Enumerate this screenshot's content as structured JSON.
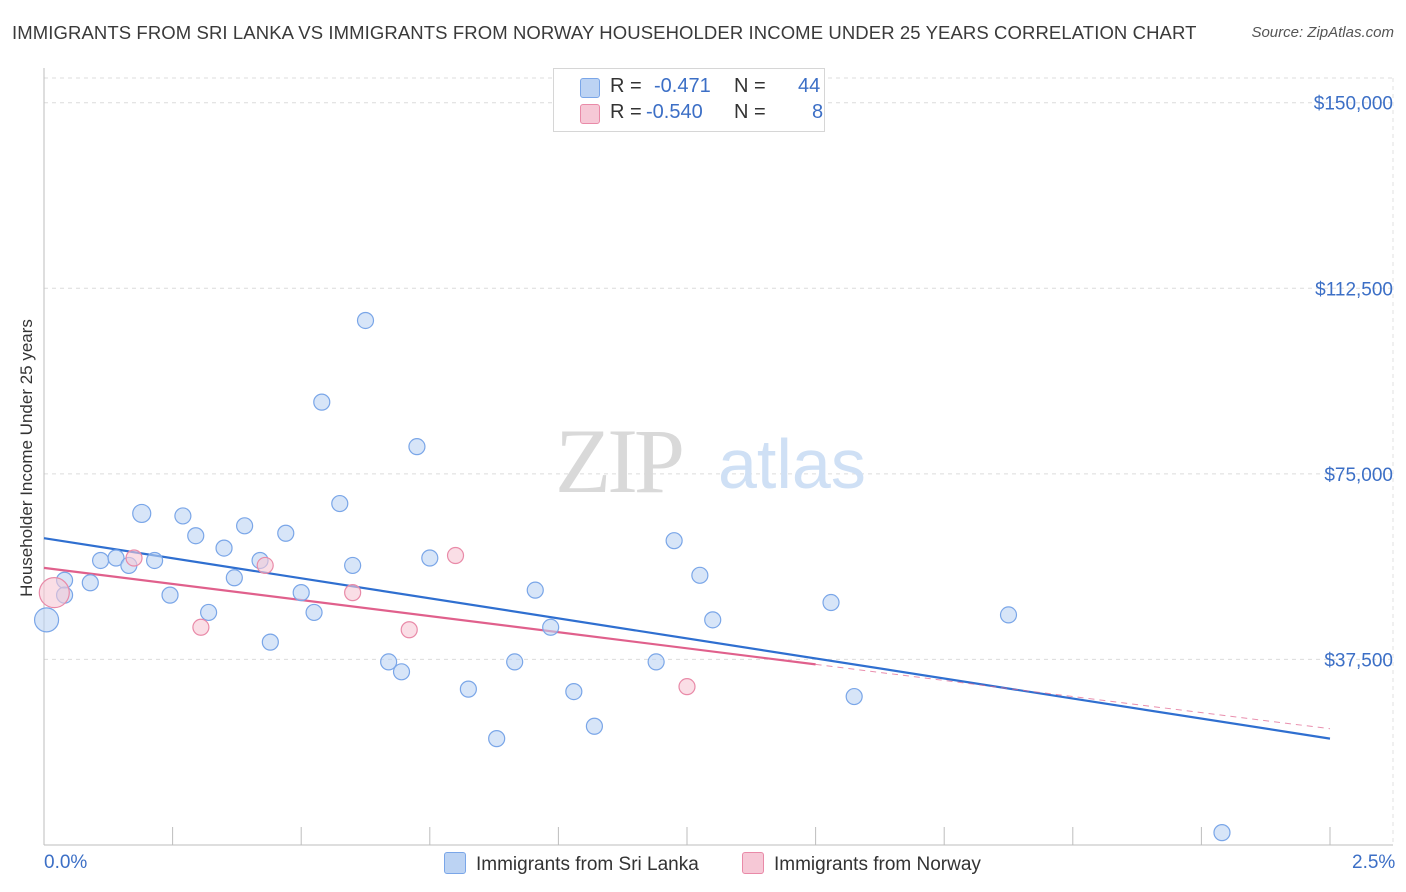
{
  "chart_data": {
    "type": "scatter",
    "title": "IMMIGRANTS FROM SRI LANKA VS IMMIGRANTS FROM NORWAY HOUSEHOLDER INCOME UNDER 25 YEARS CORRELATION CHART",
    "source": "Source: ZipAtlas.com",
    "ylabel": "Householder Income Under 25 years",
    "xlabel": "",
    "xlim": [
      0,
      2.5
    ],
    "ylim": [
      0,
      155000
    ],
    "yticks": [
      37500,
      75000,
      112500,
      150000
    ],
    "ytick_labels": [
      "$37,500",
      "$75,000",
      "$112,500",
      "$150,000"
    ],
    "x_min_label": "0.0%",
    "x_max_label": "2.5%",
    "watermark": "ZIPatlas",
    "legend": [
      {
        "r_label": "R =",
        "r_value": "-0.471",
        "n_label": "N =",
        "n_value": "44",
        "color": "#7aa6e8",
        "fill": "#bcd3f3"
      },
      {
        "r_label": "R =",
        "r_value": "-0.540",
        "n_label": "N =",
        "n_value": "8",
        "color": "#e98aa8",
        "fill": "#f6c8d6"
      }
    ],
    "series": [
      {
        "name": "Immigrants from Sri Lanka",
        "color": "#7aa6e8",
        "fill": "#bcd3f3",
        "trend": {
          "x0": 0,
          "y0": 62000,
          "x1": 2.5,
          "y1": 21500,
          "color": "#2f6fd0"
        },
        "points": [
          [
            0.005,
            45500,
            22
          ],
          [
            0.04,
            53500,
            14
          ],
          [
            0.09,
            53000,
            14
          ],
          [
            0.11,
            57500,
            14
          ],
          [
            0.14,
            58000,
            14
          ],
          [
            0.165,
            56500,
            14
          ],
          [
            0.19,
            67000,
            16
          ],
          [
            0.215,
            57500,
            14
          ],
          [
            0.245,
            50500,
            14
          ],
          [
            0.27,
            66500,
            14
          ],
          [
            0.295,
            62500,
            14
          ],
          [
            0.32,
            47000,
            14
          ],
          [
            0.35,
            60000,
            14
          ],
          [
            0.37,
            54000,
            14
          ],
          [
            0.39,
            64500,
            14
          ],
          [
            0.42,
            57500,
            14
          ],
          [
            0.44,
            41000,
            14
          ],
          [
            0.47,
            63000,
            14
          ],
          [
            0.5,
            51000,
            14
          ],
          [
            0.525,
            47000,
            14
          ],
          [
            0.54,
            89500,
            14
          ],
          [
            0.575,
            69000,
            14
          ],
          [
            0.6,
            56500,
            14
          ],
          [
            0.625,
            106000,
            14
          ],
          [
            0.67,
            37000,
            14
          ],
          [
            0.695,
            35000,
            14
          ],
          [
            0.725,
            80500,
            14
          ],
          [
            0.75,
            58000,
            14
          ],
          [
            0.825,
            31500,
            14
          ],
          [
            0.88,
            21500,
            14
          ],
          [
            0.915,
            37000,
            14
          ],
          [
            0.955,
            51500,
            14
          ],
          [
            0.985,
            44000,
            14
          ],
          [
            1.03,
            31000,
            14
          ],
          [
            1.07,
            24000,
            14
          ],
          [
            1.19,
            37000,
            14
          ],
          [
            1.225,
            61500,
            14
          ],
          [
            1.275,
            54500,
            14
          ],
          [
            1.3,
            45500,
            14
          ],
          [
            1.53,
            49000,
            14
          ],
          [
            1.575,
            30000,
            14
          ],
          [
            1.875,
            46500,
            14
          ],
          [
            2.29,
            2500,
            14
          ],
          [
            0.04,
            50500,
            14
          ]
        ]
      },
      {
        "name": "Immigrants from Norway",
        "color": "#e98aa8",
        "fill": "#f6c8d6",
        "trend": {
          "x0": 0,
          "y0": 56000,
          "x1": 1.5,
          "y1": 36500,
          "x2": 2.5,
          "y2": 23500,
          "color": "#e0608c"
        },
        "points": [
          [
            0.02,
            51000,
            28
          ],
          [
            0.175,
            58000,
            14
          ],
          [
            0.305,
            44000,
            14
          ],
          [
            0.43,
            56500,
            14
          ],
          [
            0.6,
            51000,
            14
          ],
          [
            0.71,
            43500,
            14
          ],
          [
            0.8,
            58500,
            14
          ],
          [
            1.25,
            32000,
            14
          ]
        ]
      }
    ]
  }
}
